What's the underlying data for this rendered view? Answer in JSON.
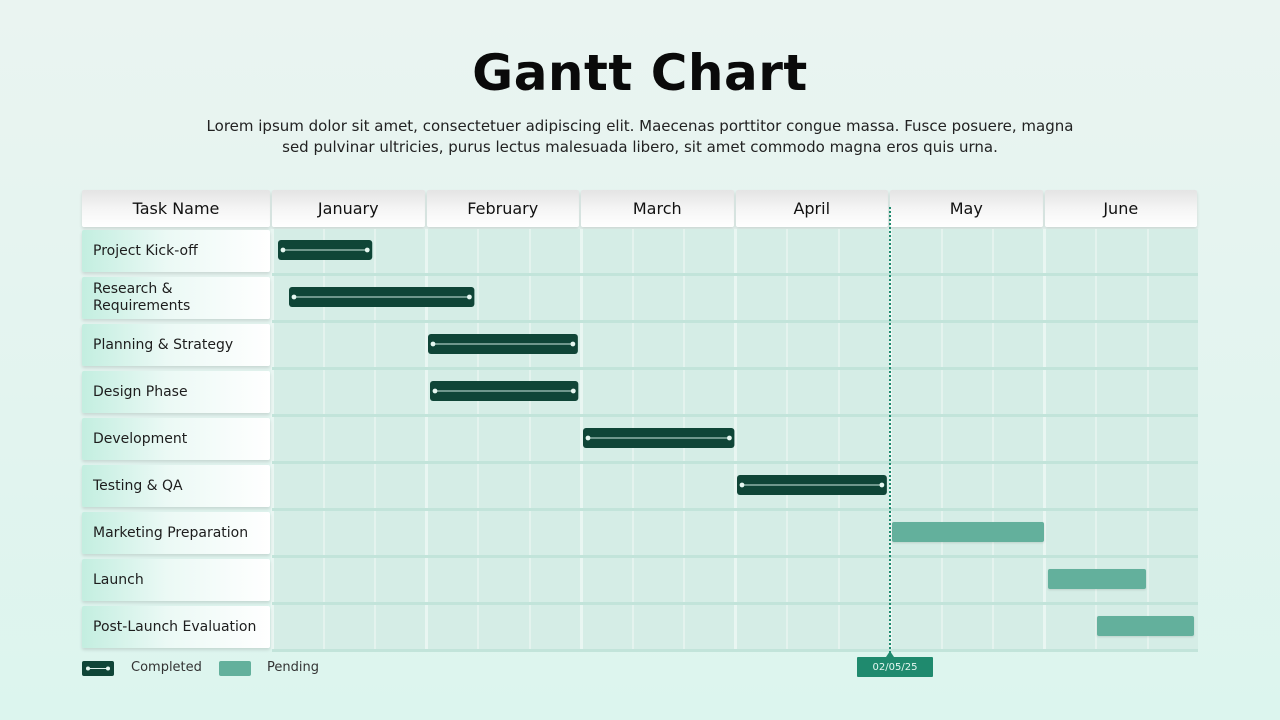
{
  "title": "Gantt Chart",
  "subtitle": "Lorem ipsum dolor sit amet, consectetuer adipiscing elit. Maecenas porttitor congue massa. Fusce posuere, magna sed pulvinar ultricies, purus lectus malesuada libero, sit amet commodo magna eros quis urna.",
  "legend": {
    "completed": "Completed",
    "pending": "Pending"
  },
  "colors": {
    "completed": "#0f4537",
    "pending": "#63b09c",
    "marker": "#1f8a6e"
  },
  "chart_data": {
    "type": "gantt",
    "task_header": "Task Name",
    "months": [
      "January",
      "February",
      "March",
      "April",
      "May",
      "June"
    ],
    "current_date_label": "02/05/25",
    "current_date_month_index": 4.0,
    "tasks": [
      {
        "name": "Project Kick-off",
        "start": 0.04,
        "end": 0.65,
        "status": "completed"
      },
      {
        "name": "Research & Requirements",
        "start": 0.11,
        "end": 1.31,
        "status": "completed"
      },
      {
        "name": "Planning & Strategy",
        "start": 1.01,
        "end": 1.98,
        "status": "completed"
      },
      {
        "name": "Design Phase",
        "start": 1.02,
        "end": 1.98,
        "status": "completed"
      },
      {
        "name": "Development",
        "start": 2.01,
        "end": 2.99,
        "status": "completed"
      },
      {
        "name": "Testing & QA",
        "start": 3.01,
        "end": 3.98,
        "status": "completed"
      },
      {
        "name": "Marketing Preparation",
        "start": 4.01,
        "end": 5.0,
        "status": "pending"
      },
      {
        "name": "Launch",
        "start": 5.02,
        "end": 5.66,
        "status": "pending"
      },
      {
        "name": "Post-Launch Evaluation",
        "start": 5.34,
        "end": 5.97,
        "status": "pending"
      }
    ]
  }
}
